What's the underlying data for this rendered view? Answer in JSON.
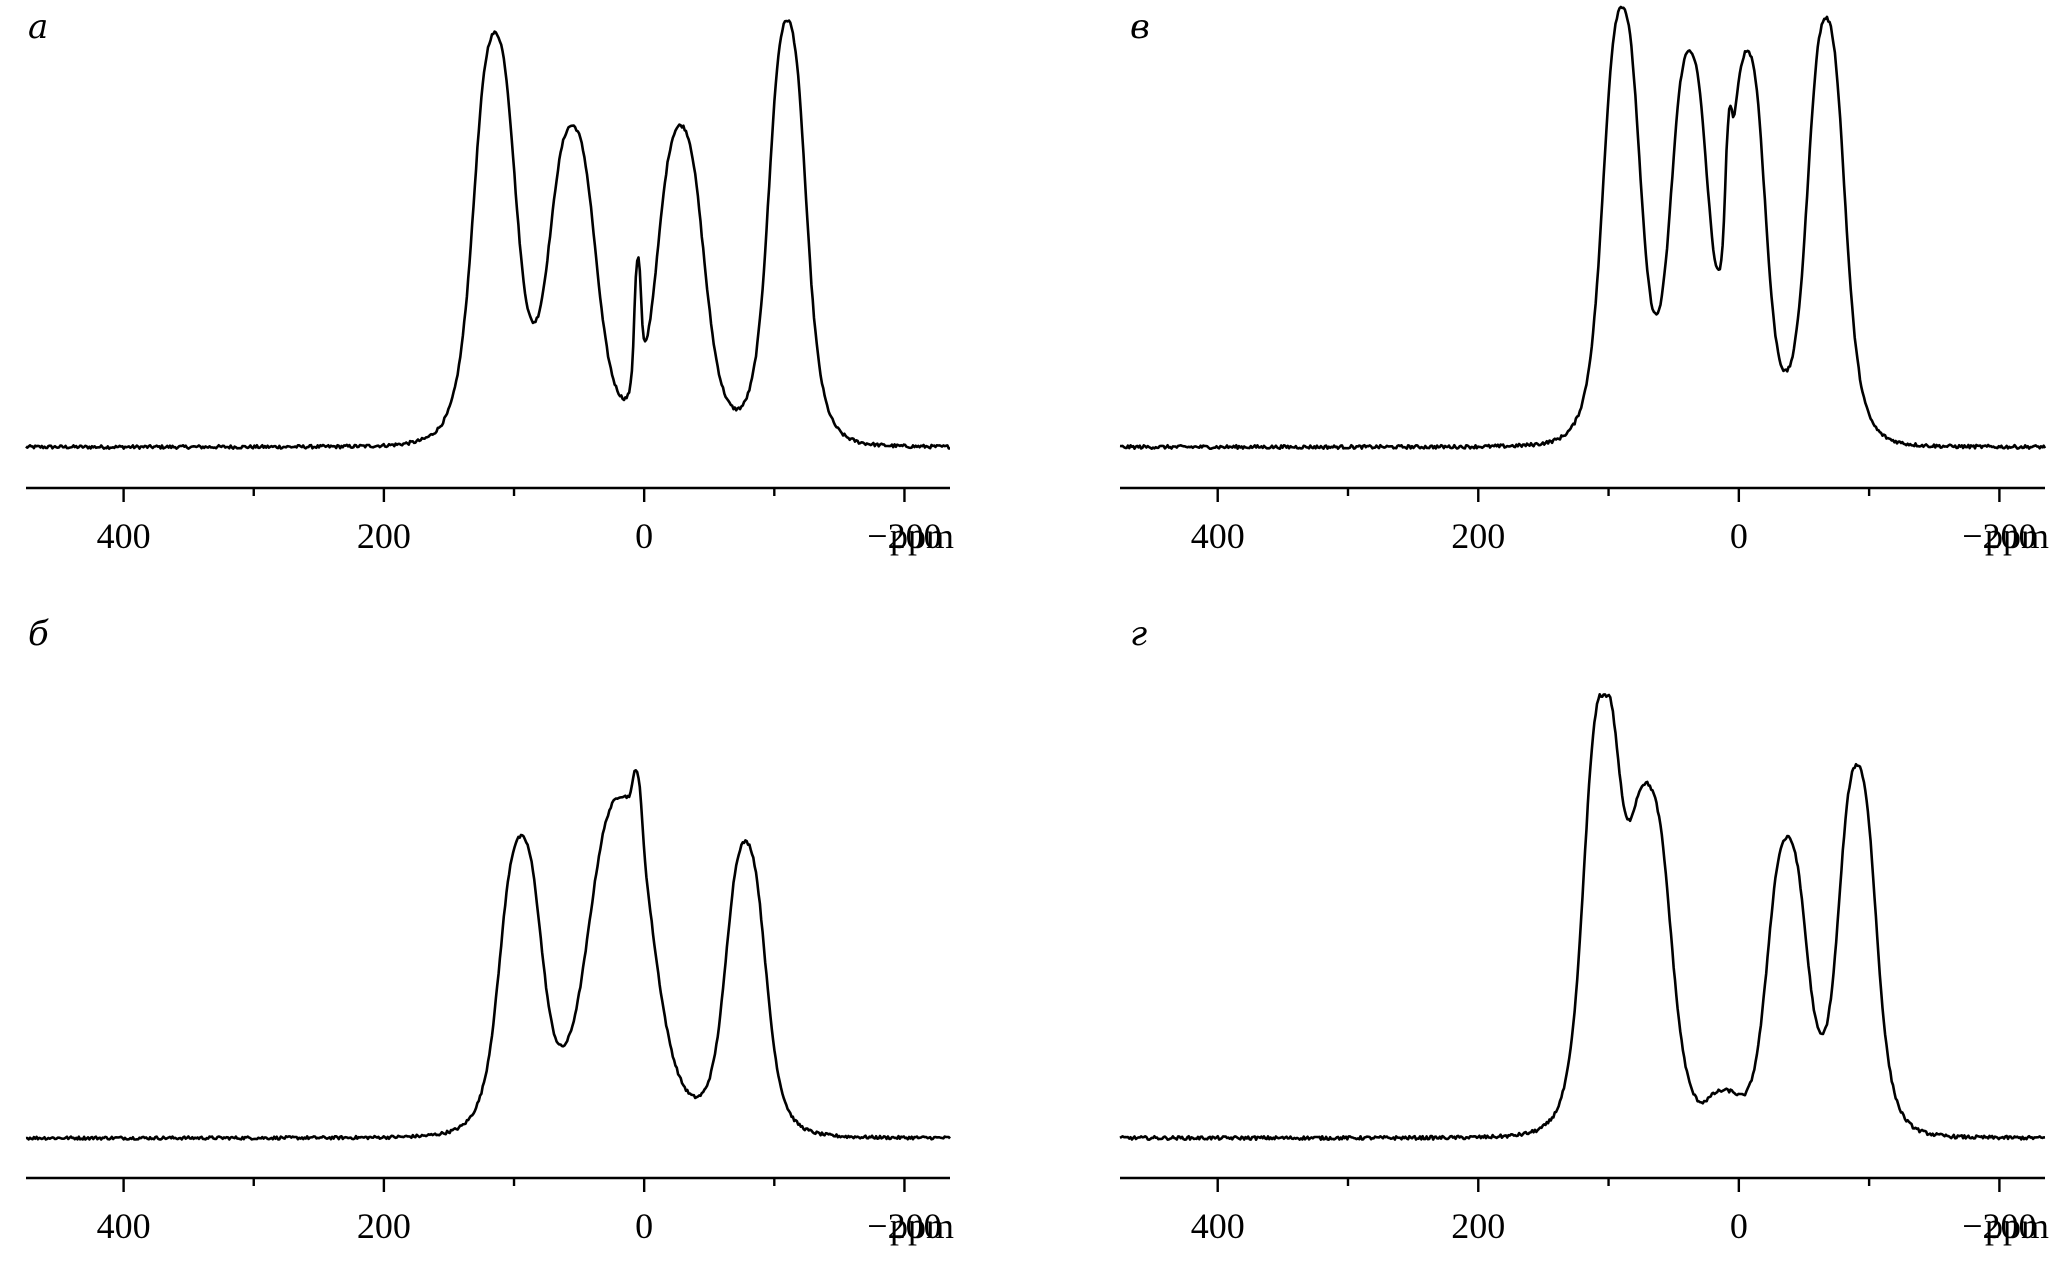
{
  "chart_data": [
    {
      "type": "line",
      "panel_label": "а",
      "xlabel": "ppm",
      "xlim": [
        475,
        -235
      ],
      "xticks": [
        400,
        200,
        0,
        -200
      ],
      "xtick_labels": [
        "400",
        "200",
        "0",
        "−200"
      ],
      "minor_xticks": [
        300,
        100,
        -100
      ],
      "reversed_x": true,
      "baseline": 0.0,
      "peaks": [
        {
          "center": 115,
          "height": 0.96,
          "width": 18
        },
        {
          "center": 55,
          "height": 0.74,
          "width": 20
        },
        {
          "center": 5,
          "height": 0.3,
          "width": 3
        },
        {
          "center": -28,
          "height": 0.75,
          "width": 20
        },
        {
          "center": -110,
          "height": 1.0,
          "width": 16
        }
      ],
      "series": [
        {
          "values": []
        }
      ]
    },
    {
      "type": "line",
      "panel_label": "б",
      "xlabel": "ppm",
      "xlim": [
        475,
        -235
      ],
      "xticks": [
        400,
        200,
        0,
        -200
      ],
      "xtick_labels": [
        "400",
        "200",
        "0",
        "−200"
      ],
      "minor_xticks": [
        300,
        100,
        -100
      ],
      "reversed_x": true,
      "baseline": 0.0,
      "peaks": [
        {
          "center": 95,
          "height": 0.75,
          "width": 18
        },
        {
          "center": 18,
          "height": 0.87,
          "width": 28
        },
        {
          "center": 5,
          "height": 0.15,
          "width": 4
        },
        {
          "center": -78,
          "height": 0.75,
          "width": 17
        }
      ],
      "series": [
        {
          "values": []
        }
      ]
    },
    {
      "type": "line",
      "panel_label": "в",
      "xlabel": "ppm",
      "xlim": [
        475,
        -235
      ],
      "xticks": [
        400,
        200,
        0,
        -200
      ],
      "xtick_labels": [
        "400",
        "200",
        "0",
        "−200"
      ],
      "minor_xticks": [
        300,
        100,
        -100
      ],
      "reversed_x": true,
      "baseline": 0.0,
      "peaks": [
        {
          "center": 90,
          "height": 1.0,
          "width": 16
        },
        {
          "center": 38,
          "height": 0.88,
          "width": 16
        },
        {
          "center": 8,
          "height": 0.22,
          "width": 3
        },
        {
          "center": -7,
          "height": 0.88,
          "width": 15
        },
        {
          "center": -67,
          "height": 0.98,
          "width": 16
        }
      ],
      "series": [
        {
          "values": []
        }
      ]
    },
    {
      "type": "line",
      "panel_label": "г",
      "xlabel": "ppm",
      "xlim": [
        475,
        -235
      ],
      "xticks": [
        400,
        200,
        0,
        -200
      ],
      "xtick_labels": [
        "400",
        "200",
        "0",
        "−200"
      ],
      "minor_xticks": [
        300,
        100,
        -100
      ],
      "reversed_x": true,
      "baseline": 0.0,
      "peaks": [
        {
          "center": 105,
          "height": 0.98,
          "width": 16
        },
        {
          "center": 68,
          "height": 0.76,
          "width": 18
        },
        {
          "center": 12,
          "height": 0.08,
          "width": 14
        },
        {
          "center": -37,
          "height": 0.68,
          "width": 17
        },
        {
          "center": -91,
          "height": 0.85,
          "width": 16
        }
      ],
      "series": [
        {
          "values": []
        }
      ]
    }
  ]
}
